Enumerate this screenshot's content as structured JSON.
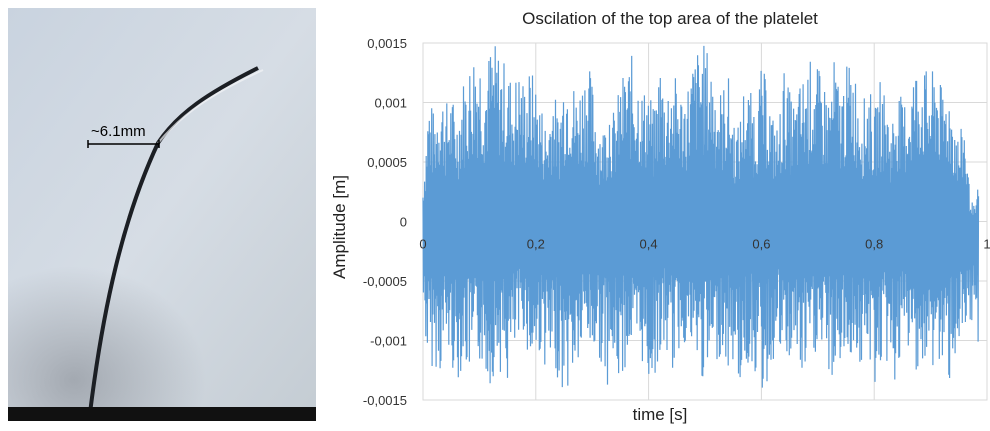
{
  "photo": {
    "measurement_label": "~6.1mm"
  },
  "chart_data": {
    "type": "line",
    "title": "Oscilation of the top area of the platelet",
    "xlabel": "time [s]",
    "ylabel": "Amplitude [m]",
    "xlim": [
      0,
      1
    ],
    "ylim": [
      -0.0015,
      0.0015
    ],
    "x_ticks": [
      "0",
      "0,2",
      "0,4",
      "0,6",
      "0,8",
      "1"
    ],
    "y_ticks": [
      "0,0015",
      "0,001",
      "0,0005",
      "0",
      "-0,0005",
      "-0,001",
      "-0,0015"
    ],
    "grid": true,
    "series_color": "#5b9bd5",
    "series": [
      {
        "x": [
          0,
          0.01,
          0.02,
          0.03,
          0.04,
          0.05,
          0.06,
          0.07,
          0.08,
          0.09,
          0.1,
          0.11,
          0.12,
          0.13,
          0.14,
          0.15,
          0.16,
          0.17,
          0.18,
          0.19,
          0.2,
          0.21,
          0.22,
          0.23,
          0.24,
          0.25,
          0.26,
          0.27,
          0.28,
          0.29,
          0.3,
          0.31,
          0.32,
          0.33,
          0.34,
          0.35,
          0.36,
          0.37,
          0.38,
          0.39,
          0.4,
          0.41,
          0.42,
          0.43,
          0.44,
          0.45,
          0.46,
          0.47,
          0.48,
          0.49,
          0.5,
          0.51,
          0.52,
          0.53,
          0.54,
          0.55,
          0.56,
          0.57,
          0.58,
          0.59,
          0.6,
          0.61,
          0.62,
          0.63,
          0.64,
          0.65,
          0.66,
          0.67,
          0.68,
          0.69,
          0.7,
          0.71,
          0.72,
          0.73,
          0.74,
          0.75,
          0.76,
          0.77,
          0.78,
          0.79,
          0.8,
          0.81,
          0.82,
          0.83,
          0.84,
          0.85,
          0.86,
          0.87,
          0.88,
          0.89,
          0.9,
          0.91,
          0.92,
          0.93,
          0.94,
          0.95,
          0.96,
          0.97,
          0.98,
          0.99
        ],
        "hi": [
          0.0003,
          0.0011,
          0.0009,
          0.0012,
          0.001,
          0.0011,
          0.0009,
          0.0012,
          0.0013,
          0.0015,
          0.0015,
          0.0013,
          0.0015,
          0.0015,
          0.0014,
          0.0013,
          0.0012,
          0.0013,
          0.0012,
          0.0013,
          0.0012,
          0.001,
          0.0008,
          0.0012,
          0.0009,
          0.0013,
          0.0014,
          0.0011,
          0.0012,
          0.0014,
          0.0012,
          0.0009,
          0.0008,
          0.0011,
          0.0009,
          0.0012,
          0.0013,
          0.0014,
          0.0013,
          0.0011,
          0.0012,
          0.0009,
          0.0014,
          0.0011,
          0.0013,
          0.0012,
          0.0011,
          0.0012,
          0.0014,
          0.0015,
          0.0015,
          0.0014,
          0.0012,
          0.0011,
          0.0013,
          0.0009,
          0.0008,
          0.0012,
          0.0011,
          0.001,
          0.0013,
          0.0012,
          0.0009,
          0.0008,
          0.0013,
          0.0011,
          0.001,
          0.0012,
          0.0013,
          0.0014,
          0.0013,
          0.0012,
          0.0011,
          0.0014,
          0.0011,
          0.0013,
          0.0014,
          0.0012,
          0.001,
          0.0012,
          0.0009,
          0.0012,
          0.0011,
          0.0008,
          0.0012,
          0.001,
          0.0011,
          0.0013,
          0.0014,
          0.0013,
          0.0012,
          0.0014,
          0.0011,
          0.0012,
          0.001,
          0.0007,
          0.0009,
          0.0002,
          0.0001,
          0.0006
        ],
        "lo": [
          -0.0008,
          -0.0013,
          -0.0012,
          -0.0013,
          -0.0011,
          -0.0012,
          -0.0014,
          -0.0012,
          -0.0013,
          -0.0014,
          -0.0012,
          -0.0013,
          -0.0014,
          -0.0012,
          -0.0013,
          -0.0014,
          -0.0012,
          -0.0011,
          -0.0009,
          -0.0013,
          -0.0012,
          -0.0011,
          -0.0013,
          -0.0014,
          -0.0013,
          -0.0015,
          -0.0014,
          -0.0013,
          -0.0012,
          -0.001,
          -0.0012,
          -0.0011,
          -0.0013,
          -0.0014,
          -0.0013,
          -0.0014,
          -0.0012,
          -0.0011,
          -0.0013,
          -0.0012,
          -0.0014,
          -0.0013,
          -0.0012,
          -0.0011,
          -0.0013,
          -0.0012,
          -0.001,
          -0.0011,
          -0.0012,
          -0.0013,
          -0.0014,
          -0.0013,
          -0.0012,
          -0.0011,
          -0.0013,
          -0.0012,
          -0.0014,
          -0.0013,
          -0.0012,
          -0.0013,
          -0.0015,
          -0.0014,
          -0.0012,
          -0.0011,
          -0.0013,
          -0.0012,
          -0.0011,
          -0.0014,
          -0.0013,
          -0.0012,
          -0.0011,
          -0.0012,
          -0.0013,
          -0.0014,
          -0.0012,
          -0.0013,
          -0.0011,
          -0.0012,
          -0.0013,
          -0.0012,
          -0.0014,
          -0.0013,
          -0.0012,
          -0.0013,
          -0.0014,
          -0.0012,
          -0.0011,
          -0.0013,
          -0.0012,
          -0.0014,
          -0.0013,
          -0.0012,
          -0.0013,
          -0.0014,
          -0.0012,
          -0.0011,
          -0.0013,
          -0.001,
          -0.0009,
          -0.0012
        ]
      }
    ]
  }
}
